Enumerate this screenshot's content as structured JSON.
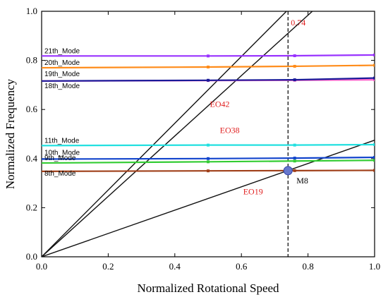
{
  "chart_data": {
    "type": "line",
    "xlabel": "Normalized Rotational Speed",
    "ylabel": "Normalized Frequency",
    "xlim": [
      0,
      1
    ],
    "ylim": [
      0,
      1
    ],
    "x_ticks": [
      "0.0",
      "0.2",
      "0.4",
      "0.6",
      "0.8",
      "1.0"
    ],
    "y_ticks": [
      "0.0",
      "0.2",
      "0.4",
      "0.6",
      "0.8",
      "1.0"
    ],
    "grid": false,
    "modes": [
      {
        "name": "8th_Mode",
        "color": "#a0401a",
        "values": [
          0.348,
          0.35,
          0.351,
          0.352
        ]
      },
      {
        "name": "9th_Mode",
        "color": "#33cc33",
        "values": [
          0.382,
          0.387,
          0.39,
          0.393
        ]
      },
      {
        "name": "10th_Mode",
        "color": "#1144cc",
        "values": [
          0.398,
          0.4,
          0.402,
          0.405
        ]
      },
      {
        "name": "11th_Mode",
        "color": "#22e0e0",
        "values": [
          0.453,
          0.455,
          0.455,
          0.457
        ]
      },
      {
        "name": "18th_Mode",
        "color": "#ff66cc",
        "values": [
          0.716,
          0.718,
          0.719,
          0.721
        ]
      },
      {
        "name": "19th_Mode",
        "color": "#1a1a99",
        "values": [
          0.716,
          0.719,
          0.721,
          0.728
        ]
      },
      {
        "name": "20th_Mode",
        "color": "#ff8c1a",
        "values": [
          0.77,
          0.773,
          0.776,
          0.78
        ]
      },
      {
        "name": "21th_Mode",
        "color": "#9933ff",
        "values": [
          0.818,
          0.818,
          0.819,
          0.822
        ]
      }
    ],
    "mode_x": [
      0.0,
      0.5,
      0.76,
      1.0
    ],
    "engine_orders": [
      {
        "name": "EO42",
        "slope": 1.36
      },
      {
        "name": "EO38",
        "slope": 1.23
      },
      {
        "name": "EO19",
        "slope": 0.475
      }
    ],
    "operating_speed": 0.74,
    "operating_speed_label": "0.74",
    "resonance_point": {
      "label": "M8",
      "x": 0.74,
      "y": 0.351
    }
  }
}
